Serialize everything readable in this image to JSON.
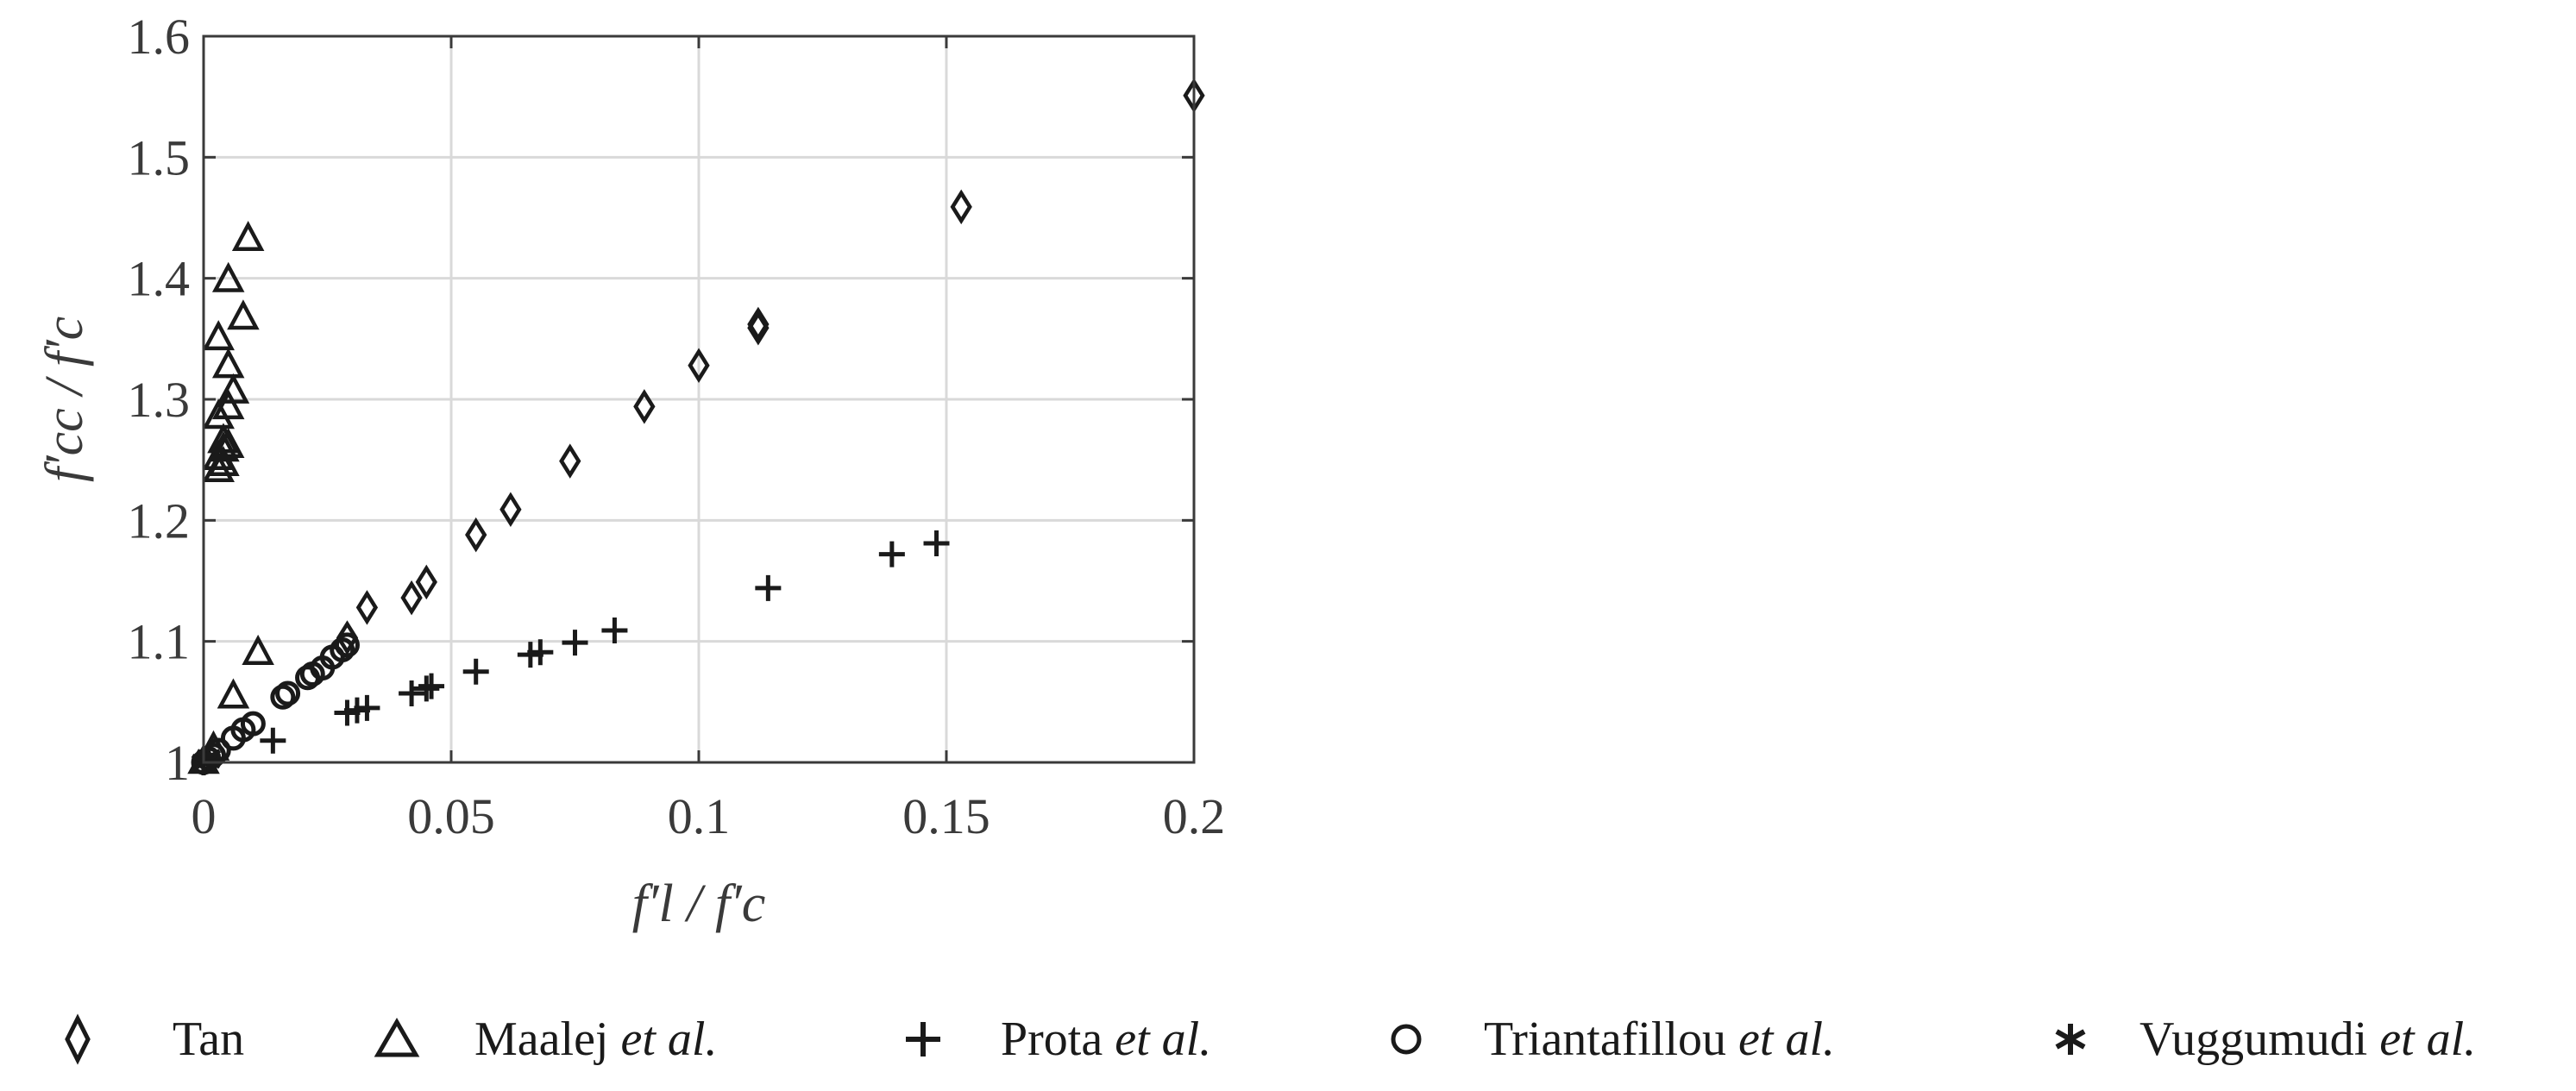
{
  "chart_data": {
    "type": "scatter",
    "xlabel": "f′l / f′c",
    "ylabel": "f′cc / f′c",
    "xlim": [
      0,
      0.2
    ],
    "ylim": [
      1,
      1.6
    ],
    "xticks": [
      "0",
      "0.05",
      "0.1",
      "0.15",
      "0.2"
    ],
    "yticks": [
      "1",
      "1.1",
      "1.2",
      "1.3",
      "1.4",
      "1.5",
      "1.6"
    ],
    "grid": true,
    "legend_placement": "bottom",
    "series": [
      {
        "name": "Tan",
        "marker": "diamond",
        "points": [
          [
            0.029,
            1.103
          ],
          [
            0.033,
            1.128
          ],
          [
            0.042,
            1.136
          ],
          [
            0.045,
            1.149
          ],
          [
            0.055,
            1.188
          ],
          [
            0.062,
            1.209
          ],
          [
            0.074,
            1.249
          ],
          [
            0.089,
            1.294
          ],
          [
            0.1,
            1.328
          ],
          [
            0.112,
            1.359
          ],
          [
            0.112,
            1.362
          ],
          [
            0.153,
            1.459
          ],
          [
            0.2,
            1.551
          ]
        ]
      },
      {
        "name": "Maalej et al.",
        "marker": "triangle",
        "points": [
          [
            0.0,
            1.0
          ],
          [
            0.002,
            1.011
          ],
          [
            0.006,
            1.054
          ],
          [
            0.011,
            1.09
          ],
          [
            0.003,
            1.241
          ],
          [
            0.004,
            1.246
          ],
          [
            0.003,
            1.251
          ],
          [
            0.004,
            1.258
          ],
          [
            0.005,
            1.261
          ],
          [
            0.004,
            1.265
          ],
          [
            0.003,
            1.285
          ],
          [
            0.005,
            1.293
          ],
          [
            0.006,
            1.306
          ],
          [
            0.005,
            1.327
          ],
          [
            0.003,
            1.35
          ],
          [
            0.008,
            1.367
          ],
          [
            0.005,
            1.398
          ],
          [
            0.009,
            1.432
          ]
        ]
      },
      {
        "name": "Prota et al.",
        "marker": "plus",
        "points": [
          [
            0.014,
            1.018
          ],
          [
            0.029,
            1.041
          ],
          [
            0.031,
            1.043
          ],
          [
            0.033,
            1.045
          ],
          [
            0.042,
            1.057
          ],
          [
            0.045,
            1.061
          ],
          [
            0.046,
            1.063
          ],
          [
            0.055,
            1.075
          ],
          [
            0.066,
            1.089
          ],
          [
            0.068,
            1.091
          ],
          [
            0.075,
            1.099
          ],
          [
            0.083,
            1.109
          ],
          [
            0.114,
            1.144
          ],
          [
            0.139,
            1.172
          ],
          [
            0.148,
            1.181
          ]
        ]
      },
      {
        "name": "Triantafillou et al.",
        "marker": "circle",
        "points": [
          [
            0.0,
            1.0
          ],
          [
            0.001,
            1.003
          ],
          [
            0.002,
            1.006
          ],
          [
            0.003,
            1.01
          ],
          [
            0.006,
            1.02
          ],
          [
            0.008,
            1.027
          ],
          [
            0.01,
            1.032
          ],
          [
            0.016,
            1.054
          ],
          [
            0.017,
            1.057
          ],
          [
            0.021,
            1.07
          ],
          [
            0.022,
            1.073
          ],
          [
            0.024,
            1.078
          ],
          [
            0.026,
            1.087
          ],
          [
            0.028,
            1.093
          ],
          [
            0.029,
            1.097
          ]
        ]
      },
      {
        "name": "Vuggumudi et al.",
        "marker": "asterisk",
        "points": [
          [
            0.0,
            1.0
          ],
          [
            0.001,
            1.002
          ],
          [
            0.001,
            1.004
          ]
        ]
      }
    ]
  },
  "legend": {
    "items": [
      {
        "marker": "diamond",
        "text": "Tan",
        "suffix": ""
      },
      {
        "marker": "triangle",
        "text": "Maalej ",
        "suffix": "et al."
      },
      {
        "marker": "plus",
        "text": "Prota ",
        "suffix": "et al."
      },
      {
        "marker": "circle",
        "text": "Triantafillou ",
        "suffix": "et al."
      },
      {
        "marker": "asterisk",
        "text": "Vuggumudi ",
        "suffix": "et al."
      }
    ]
  },
  "colors": {
    "marker_stroke": "#1a1a1a",
    "grid": "#d9d9d9",
    "axis": "#3a3a3a"
  }
}
